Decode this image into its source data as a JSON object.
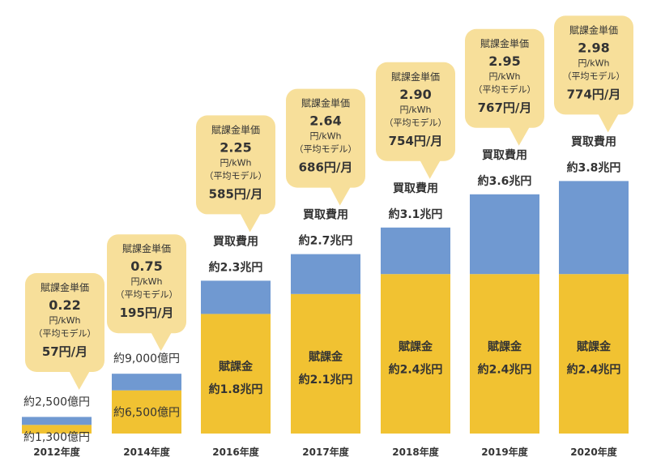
{
  "chart_data": {
    "type": "bar",
    "stacked": true,
    "categories": [
      "2012年度",
      "2014年度",
      "2016年度",
      "2017年度",
      "2018年度",
      "2019年度",
      "2020年度"
    ],
    "unit": "兆円",
    "series": [
      {
        "key": "fukakin",
        "values": [
          0.13,
          0.65,
          1.8,
          2.1,
          2.4,
          2.4,
          2.4
        ],
        "color": "#f1c232"
      },
      {
        "key": "kaitori_extra",
        "values": [
          0.12,
          0.25,
          0.5,
          0.6,
          0.7,
          1.2,
          1.4
        ],
        "color": "#7099d1"
      }
    ],
    "totals": [
      0.25,
      0.9,
      2.3,
      2.7,
      3.1,
      3.6,
      3.8
    ],
    "ylim": [
      0,
      4.0
    ],
    "grid": false,
    "legend": "none",
    "bar_labels": [
      {
        "fukakin_line1": "",
        "fukakin_line2": "約1,300億円",
        "kaitori_line1": "",
        "kaitori_line2": "約2,500億円"
      },
      {
        "fukakin_line1": "",
        "fukakin_line2": "約6,500億円",
        "kaitori_line1": "",
        "kaitori_line2": "約9,000億円"
      },
      {
        "fukakin_line1": "賦課金",
        "fukakin_line2": "約1.8兆円",
        "kaitori_line1": "買取費用",
        "kaitori_line2": "約2.3兆円"
      },
      {
        "fukakin_line1": "賦課金",
        "fukakin_line2": "約2.1兆円",
        "kaitori_line1": "買取費用",
        "kaitori_line2": "約2.7兆円"
      },
      {
        "fukakin_line1": "賦課金",
        "fukakin_line2": "約2.4兆円",
        "kaitori_line1": "買取費用",
        "kaitori_line2": "約3.1兆円"
      },
      {
        "fukakin_line1": "賦課金",
        "fukakin_line2": "約2.4兆円",
        "kaitori_line1": "買取費用",
        "kaitori_line2": "約3.6兆円"
      },
      {
        "fukakin_line1": "賦課金",
        "fukakin_line2": "約2.4兆円",
        "kaitori_line1": "買取費用",
        "kaitori_line2": "約3.8兆円"
      }
    ],
    "callouts": [
      {
        "title": "賦課金単価",
        "price": "0.22",
        "unit": "円/kWh",
        "model": "（平均モデル）",
        "monthly": "57円/月"
      },
      {
        "title": "賦課金単価",
        "price": "0.75",
        "unit": "円/kWh",
        "model": "（平均モデル）",
        "monthly": "195円/月"
      },
      {
        "title": "賦課金単価",
        "price": "2.25",
        "unit": "円/kWh",
        "model": "（平均モデル）",
        "monthly": "585円/月"
      },
      {
        "title": "賦課金単価",
        "price": "2.64",
        "unit": "円/kWh",
        "model": "（平均モデル）",
        "monthly": "686円/月"
      },
      {
        "title": "賦課金単価",
        "price": "2.90",
        "unit": "円/kWh",
        "model": "（平均モデル）",
        "monthly": "754円/月"
      },
      {
        "title": "賦課金単価",
        "price": "2.95",
        "unit": "円/kWh",
        "model": "（平均モデル）",
        "monthly": "767円/月"
      },
      {
        "title": "賦課金単価",
        "price": "2.98",
        "unit": "円/kWh",
        "model": "（平均モデル）",
        "monthly": "774円/月"
      }
    ],
    "callout_color": "#f7df9a"
  }
}
